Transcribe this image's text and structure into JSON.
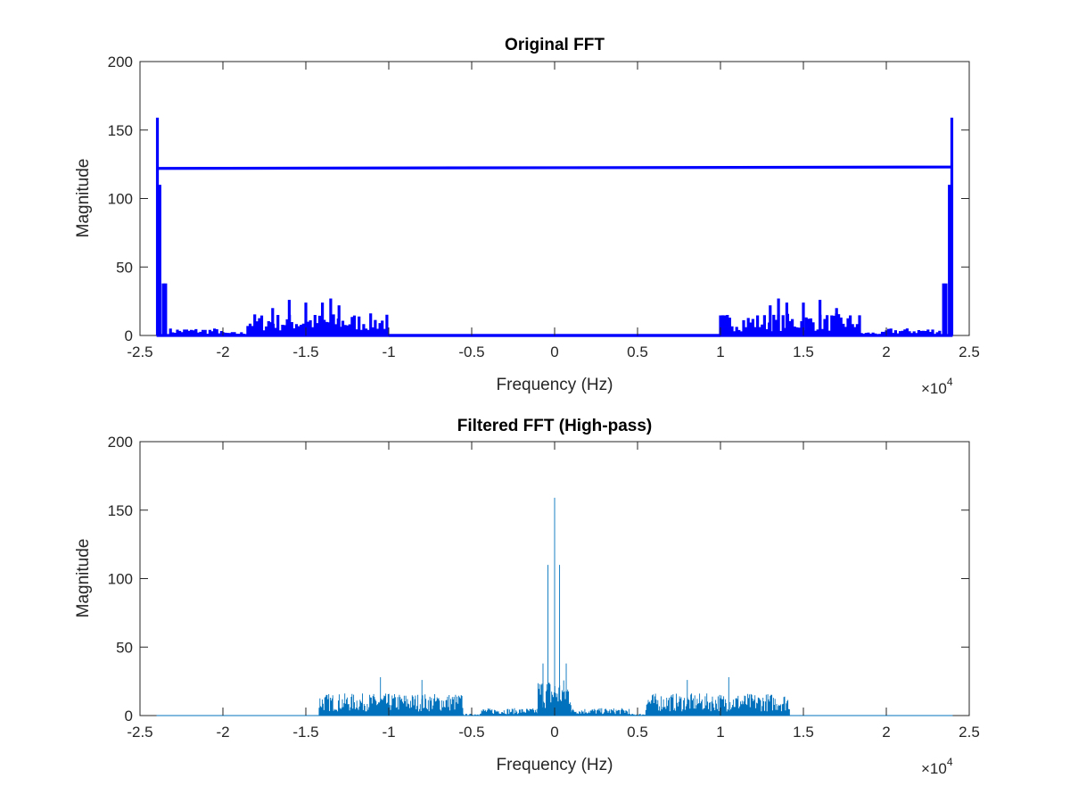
{
  "chart_data": [
    {
      "type": "line",
      "title": "Original FFT",
      "xlabel": "Frequency (Hz)",
      "ylabel": "Magnitude",
      "x_multiplier": "×10",
      "x_multiplier_exponent": "4",
      "xlim": [
        -2.5,
        2.5
      ],
      "ylim": [
        0,
        200
      ],
      "x_ticks": [
        -2.5,
        -2,
        -1.5,
        -1,
        -0.5,
        0,
        0.5,
        1,
        1.5,
        2,
        2.5
      ],
      "x_tick_labels": [
        "-2.5",
        "-2",
        "-1.5",
        "-1",
        "-0.5",
        "0",
        "0.5",
        "1",
        "1.5",
        "2",
        "2.5"
      ],
      "y_ticks": [
        0,
        50,
        100,
        150,
        200
      ],
      "y_tick_labels": [
        "0",
        "50",
        "100",
        "150",
        "200"
      ],
      "grid": false,
      "line_color": "#0000ff",
      "line_width": "thick",
      "spectrum_x_range": [
        -2.4,
        2.4
      ],
      "wrap_line": {
        "x": [
          -2.4,
          2.4
        ],
        "y": [
          122,
          123
        ]
      },
      "peaks": [
        {
          "x": -2.395,
          "y": 159
        },
        {
          "x": -2.38,
          "y": 110
        },
        {
          "x": -2.36,
          "y": 38
        },
        {
          "x": -2.345,
          "y": 38
        },
        {
          "x": -1.7,
          "y": 20
        },
        {
          "x": -1.6,
          "y": 26
        },
        {
          "x": -1.5,
          "y": 24
        },
        {
          "x": -1.4,
          "y": 24
        },
        {
          "x": -1.35,
          "y": 27
        },
        {
          "x": -1.3,
          "y": 22
        },
        {
          "x": 1.3,
          "y": 22
        },
        {
          "x": 1.35,
          "y": 27
        },
        {
          "x": 1.4,
          "y": 24
        },
        {
          "x": 1.5,
          "y": 24
        },
        {
          "x": 1.6,
          "y": 26
        },
        {
          "x": 1.7,
          "y": 20
        },
        {
          "x": 2.345,
          "y": 38
        },
        {
          "x": 2.36,
          "y": 38
        },
        {
          "x": 2.38,
          "y": 110
        },
        {
          "x": 2.395,
          "y": 159
        }
      ],
      "bands": [
        {
          "x": [
            -2.33,
            -2.0
          ],
          "level": 4
        },
        {
          "x": [
            -2.0,
            -1.85
          ],
          "level": 2
        },
        {
          "x": [
            -1.85,
            -1.0
          ],
          "level": 12
        },
        {
          "x": [
            -1.0,
            1.0
          ],
          "level": 0
        },
        {
          "x": [
            1.0,
            1.85
          ],
          "level": 12
        },
        {
          "x": [
            1.85,
            2.0
          ],
          "level": 2
        },
        {
          "x": [
            2.0,
            2.33
          ],
          "level": 4
        }
      ]
    },
    {
      "type": "line",
      "title": "Filtered FFT (High-pass)",
      "xlabel": "Frequency (Hz)",
      "ylabel": "Magnitude",
      "x_multiplier": "×10",
      "x_multiplier_exponent": "4",
      "xlim": [
        -2.5,
        2.5
      ],
      "ylim": [
        0,
        200
      ],
      "x_ticks": [
        -2.5,
        -2,
        -1.5,
        -1,
        -0.5,
        0,
        0.5,
        1,
        1.5,
        2,
        2.5
      ],
      "x_tick_labels": [
        "-2.5",
        "-2",
        "-1.5",
        "-1",
        "-0.5",
        "0",
        "0.5",
        "1",
        "1.5",
        "2",
        "2.5"
      ],
      "y_ticks": [
        0,
        50,
        100,
        150,
        200
      ],
      "y_tick_labels": [
        "0",
        "50",
        "100",
        "150",
        "200"
      ],
      "grid": false,
      "line_color": "#0072bd",
      "line_width": "thin",
      "spectrum_x_range": [
        -2.4,
        2.4
      ],
      "peaks": [
        {
          "x": -0.04,
          "y": 110
        },
        {
          "x": 0.0,
          "y": 159
        },
        {
          "x": 0.03,
          "y": 110
        },
        {
          "x": -0.07,
          "y": 38
        },
        {
          "x": 0.07,
          "y": 38
        },
        {
          "x": -1.05,
          "y": 28
        },
        {
          "x": -0.8,
          "y": 26
        },
        {
          "x": 0.8,
          "y": 26
        },
        {
          "x": 1.05,
          "y": 28
        }
      ],
      "bands": [
        {
          "x": [
            -2.4,
            -1.42
          ],
          "level": 0
        },
        {
          "x": [
            -1.42,
            -0.55
          ],
          "level": 12
        },
        {
          "x": [
            -0.55,
            -0.45
          ],
          "level": 1
        },
        {
          "x": [
            -0.45,
            -0.1
          ],
          "level": 4
        },
        {
          "x": [
            -0.1,
            0.1
          ],
          "level": 20
        },
        {
          "x": [
            0.1,
            0.45
          ],
          "level": 4
        },
        {
          "x": [
            0.45,
            0.55
          ],
          "level": 1
        },
        {
          "x": [
            0.55,
            1.42
          ],
          "level": 12
        },
        {
          "x": [
            1.42,
            2.4
          ],
          "level": 0
        }
      ]
    }
  ]
}
